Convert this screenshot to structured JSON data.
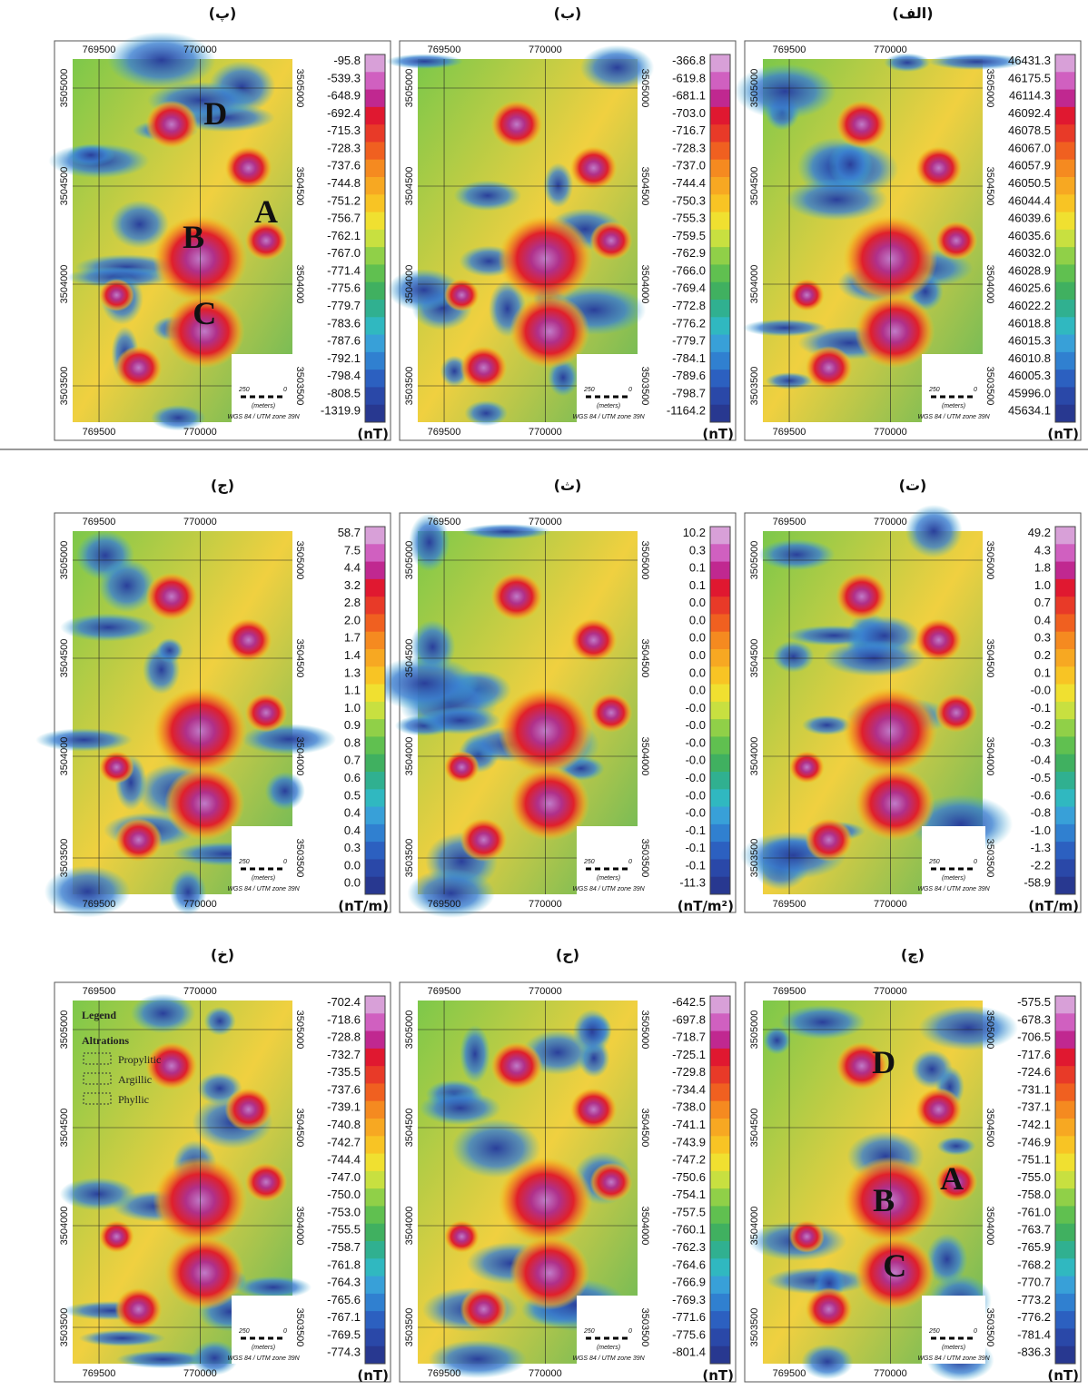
{
  "common": {
    "xticks": [
      "769500",
      "770000"
    ],
    "yticks": [
      "3505000",
      "3504500",
      "3504000",
      "3503500"
    ],
    "scale": [
      "250",
      "0",
      "(meters)"
    ],
    "crs": "WGS 84 / UTM zone 39N"
  },
  "panels": [
    {
      "label": "(الف)",
      "unit": "(nT)",
      "colorbar": [
        "46431.3",
        "46175.5",
        "46114.3",
        "46092.4",
        "46078.5",
        "46067.0",
        "46057.9",
        "46050.5",
        "46044.4",
        "46039.6",
        "46035.6",
        "46032.0",
        "46028.9",
        "46025.6",
        "46022.2",
        "46018.8",
        "46015.3",
        "46010.8",
        "46005.3",
        "45996.0",
        "45634.1"
      ]
    },
    {
      "label": "(ب)",
      "unit": "(nT)",
      "colorbar": [
        "-366.8",
        "-619.8",
        "-681.1",
        "-703.0",
        "-716.7",
        "-728.3",
        "-737.0",
        "-744.4",
        "-750.3",
        "-755.3",
        "-759.5",
        "-762.9",
        "-766.0",
        "-769.4",
        "-772.8",
        "-776.2",
        "-779.7",
        "-784.1",
        "-789.6",
        "-798.7",
        "-1164.2"
      ]
    },
    {
      "label": "(پ)",
      "unit": "(nT)",
      "colorbar": [
        "-95.8",
        "-539.3",
        "-648.9",
        "-692.4",
        "-715.3",
        "-728.3",
        "-737.6",
        "-744.8",
        "-751.2",
        "-756.7",
        "-762.1",
        "-767.0",
        "-771.4",
        "-775.6",
        "-779.7",
        "-783.6",
        "-787.6",
        "-792.1",
        "-798.4",
        "-808.5",
        "-1319.9"
      ],
      "annotations": [
        "D",
        "A",
        "B",
        "C"
      ]
    },
    {
      "label": "(ت)",
      "unit": "(nT/m)",
      "colorbar": [
        "49.2",
        "4.3",
        "1.8",
        "1.0",
        "0.7",
        "0.4",
        "0.3",
        "0.2",
        "0.1",
        "-0.0",
        "-0.1",
        "-0.2",
        "-0.3",
        "-0.4",
        "-0.5",
        "-0.6",
        "-0.8",
        "-1.0",
        "-1.3",
        "-2.2",
        "-58.9"
      ]
    },
    {
      "label": "(ث)",
      "unit": "(nT/m²)",
      "colorbar": [
        "10.2",
        "0.3",
        "0.1",
        "0.1",
        "0.0",
        "0.0",
        "0.0",
        "0.0",
        "0.0",
        "0.0",
        "-0.0",
        "-0.0",
        "-0.0",
        "-0.0",
        "-0.0",
        "-0.0",
        "-0.0",
        "-0.1",
        "-0.1",
        "-0.1",
        "-11.3"
      ]
    },
    {
      "label": "(ج)",
      "unit": "(nT/m)",
      "colorbar": [
        "58.7",
        "7.5",
        "4.4",
        "3.2",
        "2.8",
        "2.0",
        "1.7",
        "1.4",
        "1.3",
        "1.1",
        "1.0",
        "0.9",
        "0.8",
        "0.7",
        "0.6",
        "0.5",
        "0.4",
        "0.4",
        "0.3",
        "0.0",
        "0.0"
      ]
    },
    {
      "label": "(چ)",
      "unit": "(nT)",
      "colorbar": [
        "-575.5",
        "-678.3",
        "-706.5",
        "-717.6",
        "-724.6",
        "-731.1",
        "-737.1",
        "-742.1",
        "-746.9",
        "-751.1",
        "-755.0",
        "-758.0",
        "-761.0",
        "-763.7",
        "-765.9",
        "-768.2",
        "-770.7",
        "-773.2",
        "-776.2",
        "-781.4",
        "-836.3"
      ],
      "annotations": [
        "D",
        "A",
        "B",
        "C"
      ]
    },
    {
      "label": "(ح)",
      "unit": "(nT)",
      "colorbar": [
        "-642.5",
        "-697.8",
        "-718.7",
        "-725.1",
        "-729.8",
        "-734.4",
        "-738.0",
        "-741.1",
        "-743.9",
        "-747.2",
        "-750.6",
        "-754.1",
        "-757.5",
        "-760.1",
        "-762.3",
        "-764.6",
        "-766.9",
        "-769.3",
        "-771.6",
        "-775.6",
        "-801.4"
      ]
    },
    {
      "label": "(خ)",
      "unit": "(nT)",
      "colorbar": [
        "-702.4",
        "-718.6",
        "-728.8",
        "-732.7",
        "-735.5",
        "-737.6",
        "-739.1",
        "-740.8",
        "-742.7",
        "-744.4",
        "-747.0",
        "-750.0",
        "-753.0",
        "-755.5",
        "-758.7",
        "-761.8",
        "-764.3",
        "-765.6",
        "-767.1",
        "-769.5",
        "-774.3"
      ],
      "legend": {
        "title": "Legend",
        "subtitle": "Altrations",
        "items": [
          "Propylitic",
          "Argillic",
          "Phyllic"
        ]
      }
    }
  ]
}
